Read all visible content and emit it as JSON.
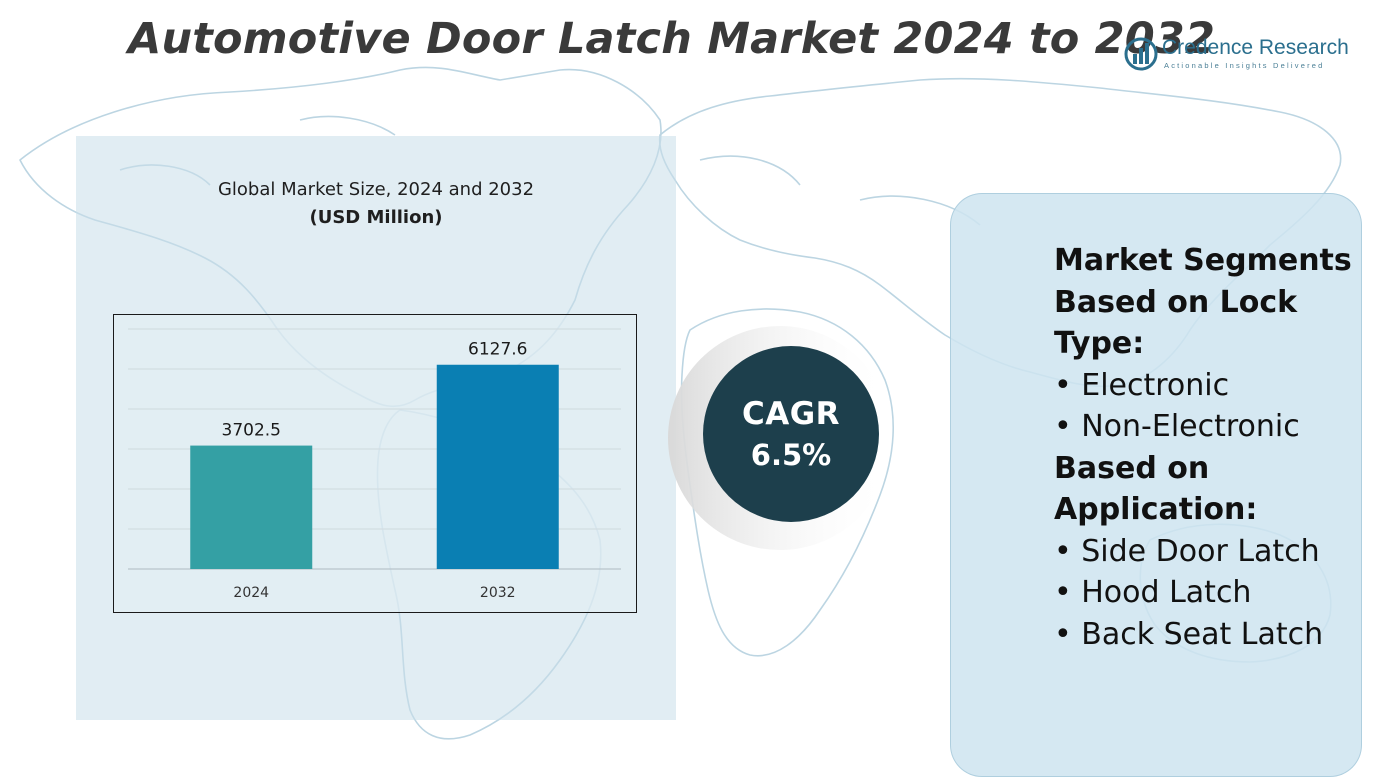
{
  "title": "Automotive Door Latch Market 2024 to 2032",
  "logo": {
    "name": "Credence Research",
    "tagline": "Actionable Insights Delivered",
    "icon": "bar-chart-logo-icon"
  },
  "chart": {
    "title": "Global Market Size, 2024 and 2032",
    "unit": "(USD Million)"
  },
  "chart_data": {
    "type": "bar",
    "categories": [
      "2024",
      "2032"
    ],
    "values": [
      3702.5,
      6127.6
    ],
    "data_labels": [
      "3702.5",
      "6127.6"
    ],
    "title": "Global Market Size, 2024 and 2032",
    "subtitle": "(USD Million)",
    "xlabel": "",
    "ylabel": "",
    "grid": true,
    "legend": "none",
    "bar_colors": [
      "#34a0a4",
      "#0a7fb3"
    ]
  },
  "cagr": {
    "label": "CAGR",
    "value": "6.5%"
  },
  "segments": {
    "heading": "Market Segments",
    "groups": [
      {
        "title": "Based on Lock Type:",
        "items": [
          "Electronic",
          "Non-Electronic"
        ]
      },
      {
        "title": "Based on Application:",
        "items": [
          "Side Door Latch",
          "Hood Latch",
          "Back Seat Latch"
        ]
      }
    ]
  },
  "colors": {
    "title_text": "#3a3a3a",
    "cagr_circle": "#1d3f4c",
    "brand": "#2b6f8e",
    "panel": "#d6e8f1"
  }
}
